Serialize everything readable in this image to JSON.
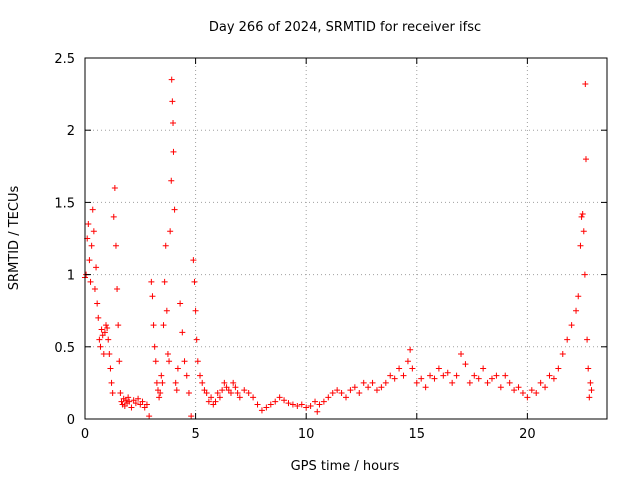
{
  "chart_data": {
    "type": "scatter",
    "title": "Day 266 of 2024, SRMTID for receiver ifsc",
    "xlabel": "GPS time / hours",
    "ylabel": "SRMTID / TECUs",
    "xlim": [
      0,
      23.6
    ],
    "ylim": [
      0,
      2.5
    ],
    "xticks": [
      0,
      5,
      10,
      15,
      20
    ],
    "xtick_labels": [
      "0",
      "5",
      "10",
      "15",
      "20"
    ],
    "yticks": [
      0,
      0.5,
      1,
      1.5,
      2,
      2.5
    ],
    "ytick_labels": [
      "0",
      "0.5",
      "1",
      "1.5",
      "2",
      "2.5"
    ],
    "grid": true,
    "marker": "plus",
    "color": "#ff0000",
    "series": [
      {
        "name": "SRMTID",
        "points": [
          [
            0.0,
            0.98
          ],
          [
            0.05,
            1.0
          ],
          [
            0.1,
            1.25
          ],
          [
            0.15,
            1.35
          ],
          [
            0.2,
            1.1
          ],
          [
            0.25,
            0.95
          ],
          [
            0.3,
            1.2
          ],
          [
            0.35,
            1.45
          ],
          [
            0.4,
            1.3
          ],
          [
            0.45,
            0.9
          ],
          [
            0.5,
            1.05
          ],
          [
            0.55,
            0.8
          ],
          [
            0.6,
            0.7
          ],
          [
            0.65,
            0.55
          ],
          [
            0.7,
            0.5
          ],
          [
            0.75,
            0.62
          ],
          [
            0.8,
            0.58
          ],
          [
            0.85,
            0.45
          ],
          [
            0.9,
            0.6
          ],
          [
            0.95,
            0.65
          ],
          [
            1.0,
            0.63
          ],
          [
            1.05,
            0.55
          ],
          [
            1.1,
            0.45
          ],
          [
            1.15,
            0.35
          ],
          [
            1.2,
            0.25
          ],
          [
            1.25,
            0.18
          ],
          [
            1.3,
            1.4
          ],
          [
            1.35,
            1.6
          ],
          [
            1.4,
            1.2
          ],
          [
            1.45,
            0.9
          ],
          [
            1.5,
            0.65
          ],
          [
            1.55,
            0.4
          ],
          [
            1.6,
            0.18
          ],
          [
            1.65,
            0.12
          ],
          [
            1.7,
            0.1
          ],
          [
            1.75,
            0.14
          ],
          [
            1.8,
            0.09
          ],
          [
            1.85,
            0.13
          ],
          [
            1.9,
            0.11
          ],
          [
            1.95,
            0.15
          ],
          [
            2.0,
            0.12
          ],
          [
            2.1,
            0.08
          ],
          [
            2.2,
            0.13
          ],
          [
            2.3,
            0.11
          ],
          [
            2.4,
            0.14
          ],
          [
            2.5,
            0.1
          ],
          [
            2.6,
            0.12
          ],
          [
            2.7,
            0.08
          ],
          [
            2.8,
            0.1
          ],
          [
            2.9,
            0.02
          ],
          [
            3.0,
            0.95
          ],
          [
            3.05,
            0.85
          ],
          [
            3.1,
            0.65
          ],
          [
            3.15,
            0.5
          ],
          [
            3.2,
            0.4
          ],
          [
            3.25,
            0.25
          ],
          [
            3.3,
            0.2
          ],
          [
            3.35,
            0.15
          ],
          [
            3.4,
            0.18
          ],
          [
            3.45,
            0.3
          ],
          [
            3.5,
            0.25
          ],
          [
            3.55,
            0.65
          ],
          [
            3.6,
            0.95
          ],
          [
            3.65,
            1.2
          ],
          [
            3.7,
            0.75
          ],
          [
            3.75,
            0.45
          ],
          [
            3.8,
            0.4
          ],
          [
            3.85,
            1.3
          ],
          [
            3.9,
            1.65
          ],
          [
            3.92,
            2.35
          ],
          [
            3.95,
            2.2
          ],
          [
            3.98,
            2.05
          ],
          [
            4.0,
            1.85
          ],
          [
            4.05,
            1.45
          ],
          [
            4.1,
            0.25
          ],
          [
            4.15,
            0.2
          ],
          [
            4.2,
            0.35
          ],
          [
            4.3,
            0.8
          ],
          [
            4.4,
            0.6
          ],
          [
            4.5,
            0.4
          ],
          [
            4.6,
            0.3
          ],
          [
            4.7,
            0.18
          ],
          [
            4.8,
            0.02
          ],
          [
            4.9,
            1.1
          ],
          [
            4.95,
            0.95
          ],
          [
            5.0,
            0.75
          ],
          [
            5.05,
            0.55
          ],
          [
            5.1,
            0.4
          ],
          [
            5.2,
            0.3
          ],
          [
            5.3,
            0.25
          ],
          [
            5.4,
            0.2
          ],
          [
            5.5,
            0.18
          ],
          [
            5.6,
            0.12
          ],
          [
            5.7,
            0.15
          ],
          [
            5.8,
            0.1
          ],
          [
            5.9,
            0.12
          ],
          [
            6.0,
            0.18
          ],
          [
            6.1,
            0.15
          ],
          [
            6.2,
            0.2
          ],
          [
            6.3,
            0.25
          ],
          [
            6.4,
            0.22
          ],
          [
            6.5,
            0.2
          ],
          [
            6.6,
            0.18
          ],
          [
            6.7,
            0.25
          ],
          [
            6.8,
            0.22
          ],
          [
            6.9,
            0.18
          ],
          [
            7.0,
            0.15
          ],
          [
            7.2,
            0.2
          ],
          [
            7.4,
            0.18
          ],
          [
            7.6,
            0.15
          ],
          [
            7.8,
            0.1
          ],
          [
            8.0,
            0.06
          ],
          [
            8.2,
            0.08
          ],
          [
            8.4,
            0.1
          ],
          [
            8.6,
            0.12
          ],
          [
            8.8,
            0.15
          ],
          [
            9.0,
            0.13
          ],
          [
            9.2,
            0.11
          ],
          [
            9.4,
            0.1
          ],
          [
            9.6,
            0.09
          ],
          [
            9.8,
            0.1
          ],
          [
            10.0,
            0.08
          ],
          [
            10.2,
            0.09
          ],
          [
            10.4,
            0.12
          ],
          [
            10.5,
            0.05
          ],
          [
            10.6,
            0.1
          ],
          [
            10.8,
            0.12
          ],
          [
            11.0,
            0.15
          ],
          [
            11.2,
            0.18
          ],
          [
            11.4,
            0.2
          ],
          [
            11.6,
            0.18
          ],
          [
            11.8,
            0.15
          ],
          [
            12.0,
            0.2
          ],
          [
            12.2,
            0.22
          ],
          [
            12.4,
            0.18
          ],
          [
            12.6,
            0.25
          ],
          [
            12.8,
            0.22
          ],
          [
            13.0,
            0.25
          ],
          [
            13.2,
            0.2
          ],
          [
            13.4,
            0.22
          ],
          [
            13.6,
            0.25
          ],
          [
            13.8,
            0.3
          ],
          [
            14.0,
            0.28
          ],
          [
            14.2,
            0.35
          ],
          [
            14.4,
            0.3
          ],
          [
            14.6,
            0.4
          ],
          [
            14.7,
            0.48
          ],
          [
            14.8,
            0.35
          ],
          [
            15.0,
            0.25
          ],
          [
            15.2,
            0.28
          ],
          [
            15.4,
            0.22
          ],
          [
            15.6,
            0.3
          ],
          [
            15.8,
            0.28
          ],
          [
            16.0,
            0.35
          ],
          [
            16.2,
            0.3
          ],
          [
            16.4,
            0.32
          ],
          [
            16.6,
            0.25
          ],
          [
            16.8,
            0.3
          ],
          [
            17.0,
            0.45
          ],
          [
            17.2,
            0.38
          ],
          [
            17.4,
            0.25
          ],
          [
            17.6,
            0.3
          ],
          [
            17.8,
            0.28
          ],
          [
            18.0,
            0.35
          ],
          [
            18.2,
            0.25
          ],
          [
            18.4,
            0.28
          ],
          [
            18.6,
            0.3
          ],
          [
            18.8,
            0.22
          ],
          [
            19.0,
            0.3
          ],
          [
            19.2,
            0.25
          ],
          [
            19.4,
            0.2
          ],
          [
            19.6,
            0.22
          ],
          [
            19.8,
            0.18
          ],
          [
            20.0,
            0.15
          ],
          [
            20.2,
            0.2
          ],
          [
            20.4,
            0.18
          ],
          [
            20.6,
            0.25
          ],
          [
            20.8,
            0.22
          ],
          [
            21.0,
            0.3
          ],
          [
            21.2,
            0.28
          ],
          [
            21.4,
            0.35
          ],
          [
            21.6,
            0.45
          ],
          [
            21.8,
            0.55
          ],
          [
            22.0,
            0.65
          ],
          [
            22.2,
            0.75
          ],
          [
            22.3,
            0.85
          ],
          [
            22.4,
            1.2
          ],
          [
            22.45,
            1.4
          ],
          [
            22.5,
            1.42
          ],
          [
            22.55,
            1.3
          ],
          [
            22.6,
            1.0
          ],
          [
            22.62,
            2.32
          ],
          [
            22.65,
            1.8
          ],
          [
            22.7,
            0.55
          ],
          [
            22.75,
            0.35
          ],
          [
            22.8,
            0.15
          ],
          [
            22.85,
            0.25
          ],
          [
            22.9,
            0.2
          ]
        ]
      }
    ]
  }
}
